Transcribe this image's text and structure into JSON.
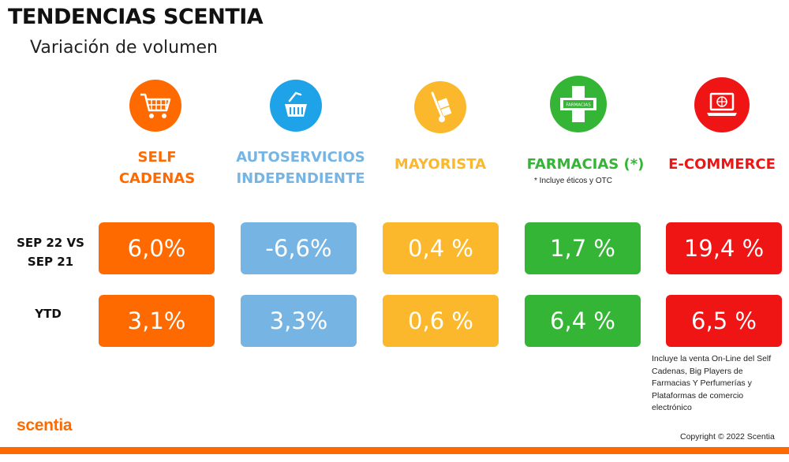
{
  "header": {
    "title": "TENDENCIAS SCENTIA",
    "subtitle": "Variación de volumen"
  },
  "channels": [
    {
      "label_line1": "SELF",
      "label_line2": "CADENAS",
      "icon": "shopping-cart-icon",
      "color": "#ff6a00"
    },
    {
      "label_line1": "AUTOSERVICIOS",
      "label_line2": "INDEPENDIENTE",
      "icon": "basket-icon",
      "color": "#76b5e3"
    },
    {
      "label_line1": "MAYORISTA",
      "icon": "hand-truck-icon",
      "color": "#fbb82c"
    },
    {
      "label_line1": "FARMACIAS (*)",
      "icon": "pharmacy-cross-icon",
      "icon_text": "FARMACIAS",
      "color": "#35b535",
      "note": "* Incluye éticos y OTC"
    },
    {
      "label_line1": "E-COMMERCE",
      "icon": "laptop-globe-icon",
      "color": "#ef1515"
    }
  ],
  "rows": [
    {
      "label_line1": "SEP 22 VS",
      "label_line2": "SEP 21",
      "values": [
        "6,0%",
        "-6,6%",
        "0,4 %",
        "1,7 %",
        "19,4 %"
      ]
    },
    {
      "label_line1": "YTD",
      "values": [
        "3,1%",
        "3,3%",
        "0,6 %",
        "6,4 %",
        "6,5 %"
      ]
    }
  ],
  "ecommerce_note": "Incluye la venta On-Line del Self Cadenas, Big Players de Farmacias Y Perfumerías y Plataformas de comercio electrónico",
  "footer": {
    "logo": "scentia",
    "copyright": "Copyright © 2022 Scentia"
  }
}
